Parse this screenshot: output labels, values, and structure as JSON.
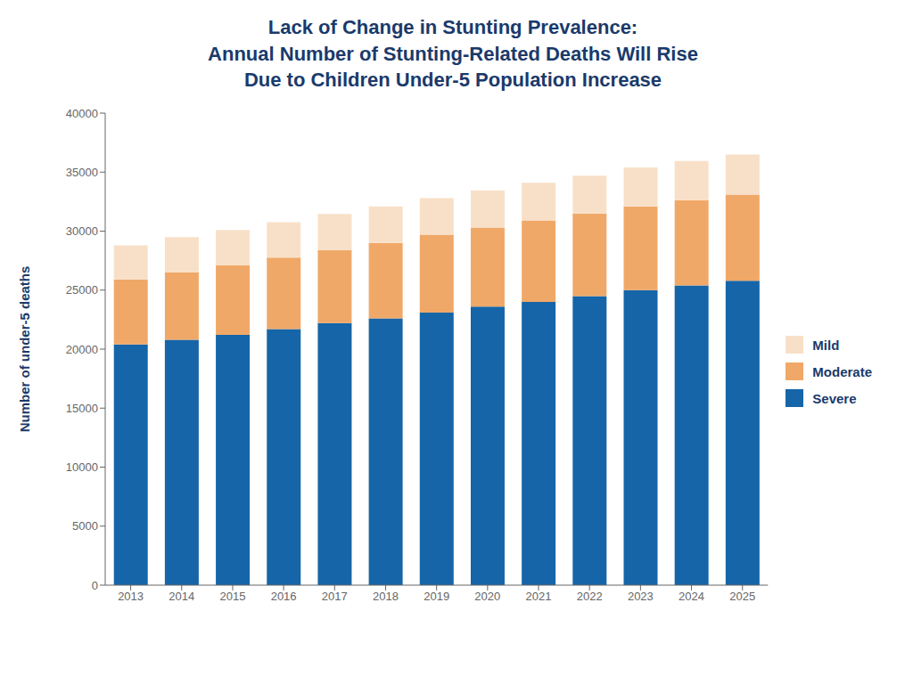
{
  "chart_data": {
    "type": "bar",
    "stacked": true,
    "title": "Lack of Change in Stunting Prevalence:\nAnnual Number of Stunting-Related Deaths Will Rise\nDue to Children Under-5 Population Increase",
    "y_label": "Number of under-5 deaths",
    "categories": [
      2013,
      2014,
      2015,
      2016,
      2017,
      2018,
      2019,
      2020,
      2021,
      2022,
      2023,
      2024,
      2025
    ],
    "series": [
      {
        "name": "Severe",
        "color": "#1565a8",
        "values": [
          20400,
          20800,
          21200,
          21700,
          22200,
          22600,
          23100,
          23600,
          24000,
          24500,
          25000,
          25400,
          25800
        ]
      },
      {
        "name": "Moderate",
        "color": "#f0a868",
        "values": [
          5500,
          5700,
          5900,
          6050,
          6200,
          6400,
          6600,
          6700,
          6900,
          7000,
          7100,
          7200,
          7300
        ]
      },
      {
        "name": "Mild",
        "color": "#f8e0c8",
        "values": [
          2900,
          3000,
          3000,
          3000,
          3050,
          3100,
          3100,
          3150,
          3200,
          3200,
          3300,
          3350,
          3400
        ]
      }
    ],
    "ylim": [
      0,
      40000
    ],
    "yticks": [
      0,
      5000,
      10000,
      15000,
      20000,
      25000,
      30000,
      35000,
      40000
    ],
    "grid": false,
    "legend": "right"
  }
}
